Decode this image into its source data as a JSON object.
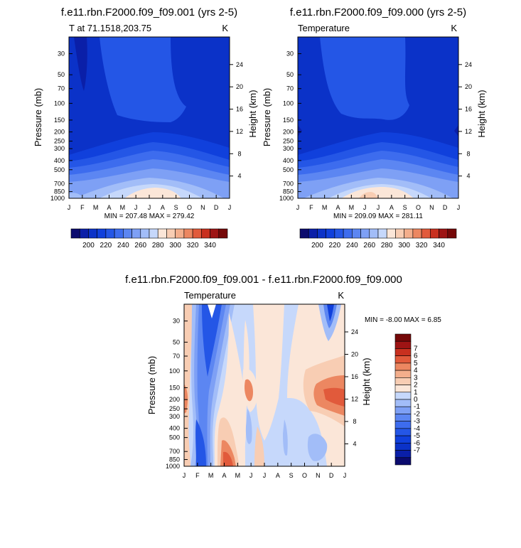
{
  "palette_blue_red": [
    "#0b0b6e",
    "#0a1fa8",
    "#0b32c8",
    "#1040dc",
    "#2456e6",
    "#3d6cee",
    "#5c86f2",
    "#7ea0f5",
    "#a2bdf8",
    "#c6d8fb",
    "#fbe6d8",
    "#f8cdb3",
    "#f3ae8c",
    "#ec8761",
    "#e15a3b",
    "#c8301f",
    "#9e1414",
    "#750808"
  ],
  "chart_data": [
    {
      "type": "contour",
      "panel": "top-left",
      "title": "f.e11.rbn.F2000.f09_f09.001 (yrs 2-5)",
      "left_string": "T at 71.1518,203.75",
      "right_string": "K",
      "xlabel": "",
      "x_ticks": [
        "J",
        "F",
        "M",
        "A",
        "M",
        "J",
        "J",
        "A",
        "S",
        "O",
        "N",
        "D",
        "J"
      ],
      "ylabel": "Pressure (mb)",
      "y_ticks": [
        "30",
        "50",
        "70",
        "100",
        "150",
        "200",
        "250",
        "300",
        "400",
        "500",
        "700",
        "850",
        "1000"
      ],
      "y_tick_values": [
        30,
        50,
        70,
        100,
        150,
        200,
        250,
        300,
        400,
        500,
        700,
        850,
        1000
      ],
      "right_axis_label": "Height (km)",
      "right_ticks": [
        "24",
        "20",
        "16",
        "12",
        "8",
        "4"
      ],
      "right_tick_values": [
        24,
        20,
        16,
        12,
        8,
        4
      ],
      "stats": "MIN = 207.48 MAX = 279.42",
      "min": 207.48,
      "max": 279.42,
      "colorbar_labels": [
        "200",
        "220",
        "240",
        "260",
        "280",
        "300",
        "320",
        "340"
      ],
      "colorbar_levels": [
        190,
        200,
        210,
        220,
        230,
        240,
        250,
        260,
        270,
        280,
        290,
        300,
        310,
        320,
        330,
        340,
        350
      ]
    },
    {
      "type": "contour",
      "panel": "top-right",
      "title": "f.e11.rbn.F2000.f09_f09.000 (yrs 2-5)",
      "left_string": "Temperature",
      "right_string": "K",
      "xlabel": "",
      "x_ticks": [
        "J",
        "F",
        "M",
        "A",
        "M",
        "J",
        "J",
        "A",
        "S",
        "O",
        "N",
        "D",
        "J"
      ],
      "ylabel": "Pressure (mb)",
      "y_ticks": [
        "30",
        "50",
        "70",
        "100",
        "150",
        "200",
        "250",
        "300",
        "400",
        "500",
        "700",
        "850",
        "1000"
      ],
      "y_tick_values": [
        30,
        50,
        70,
        100,
        150,
        200,
        250,
        300,
        400,
        500,
        700,
        850,
        1000
      ],
      "right_axis_label": "Height (km)",
      "right_ticks": [
        "24",
        "20",
        "16",
        "12",
        "8",
        "4"
      ],
      "right_tick_values": [
        24,
        20,
        16,
        12,
        8,
        4
      ],
      "stats": "MIN = 209.09 MAX = 281.11",
      "min": 209.09,
      "max": 281.11,
      "colorbar_labels": [
        "200",
        "220",
        "240",
        "260",
        "280",
        "300",
        "320",
        "340"
      ],
      "colorbar_levels": [
        190,
        200,
        210,
        220,
        230,
        240,
        250,
        260,
        270,
        280,
        290,
        300,
        310,
        320,
        330,
        340,
        350
      ]
    },
    {
      "type": "contour",
      "panel": "bottom",
      "title": "f.e11.rbn.F2000.f09_f09.001 - f.e11.rbn.F2000.f09_f09.000",
      "left_string": "Temperature",
      "right_string": "K",
      "xlabel": "",
      "x_ticks": [
        "J",
        "F",
        "M",
        "A",
        "M",
        "J",
        "J",
        "A",
        "S",
        "O",
        "N",
        "D",
        "J"
      ],
      "ylabel": "Pressure (mb)",
      "y_ticks": [
        "30",
        "50",
        "70",
        "100",
        "150",
        "200",
        "250",
        "300",
        "400",
        "500",
        "700",
        "850",
        "1000"
      ],
      "y_tick_values": [
        30,
        50,
        70,
        100,
        150,
        200,
        250,
        300,
        400,
        500,
        700,
        850,
        1000
      ],
      "right_axis_label": "Height (km)",
      "right_ticks": [
        "24",
        "20",
        "16",
        "12",
        "8",
        "4"
      ],
      "right_tick_values": [
        24,
        20,
        16,
        12,
        8,
        4
      ],
      "stats": "MIN =  -8.00 MAX =   6.85",
      "min": -8.0,
      "max": 6.85,
      "colorbar_labels": [
        "7",
        "6",
        "5",
        "4",
        "3",
        "2",
        "1",
        "0",
        "-1",
        "-2",
        "-3",
        "-4",
        "-5",
        "-6",
        "-7"
      ],
      "colorbar_levels": [
        -8,
        -7,
        -6,
        -5,
        -4,
        -3,
        -2,
        -1,
        0,
        1,
        2,
        3,
        4,
        5,
        6,
        7,
        8
      ]
    }
  ]
}
